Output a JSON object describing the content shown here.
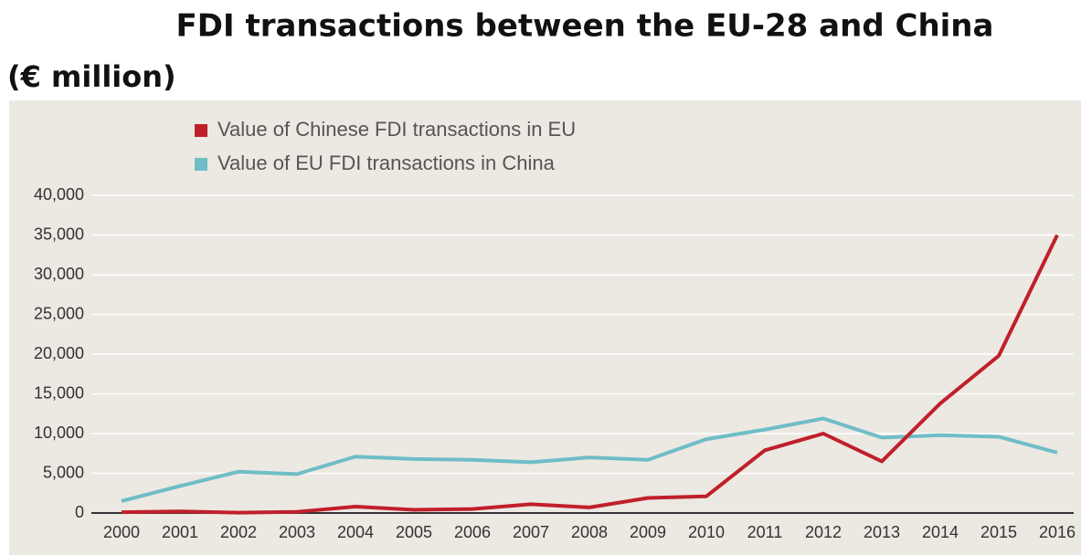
{
  "chart_data": {
    "type": "line",
    "title": "FDI transactions between the EU-28 and China",
    "subtitle": "(€ million)",
    "categories": [
      "2000",
      "2001",
      "2002",
      "2003",
      "2004",
      "2005",
      "2006",
      "2007",
      "2008",
      "2009",
      "2010",
      "2011",
      "2012",
      "2013",
      "2014",
      "2015",
      "2016"
    ],
    "series": [
      {
        "name": "Value of Chinese FDI transactions in EU",
        "color": "#c0202a",
        "values": [
          100,
          200,
          50,
          150,
          800,
          400,
          500,
          1100,
          700,
          1900,
          2100,
          7900,
          10000,
          6500,
          13800,
          19800,
          35000
        ]
      },
      {
        "name": "Value of EU FDI transactions in China",
        "color": "#6fbdc6",
        "values": [
          1500,
          3400,
          5200,
          4900,
          7100,
          6800,
          6700,
          6400,
          7000,
          6700,
          9300,
          10500,
          11900,
          9500,
          9800,
          9600,
          7600
        ]
      }
    ],
    "ylim": [
      0,
      40000
    ],
    "yticks": [
      0,
      {
        "value": 5000,
        "label": "5,000"
      },
      {
        "value": 10000,
        "label": "10,000"
      },
      {
        "value": 15000,
        "label": "15,000"
      },
      {
        "value": 20000,
        "label": "20,000"
      },
      {
        "value": 25000,
        "label": "25,000"
      },
      {
        "value": 30000,
        "label": "30,000"
      },
      {
        "value": 35000,
        "label": "35,000"
      },
      {
        "value": 40000,
        "label": "40,000"
      }
    ],
    "grid": true
  }
}
